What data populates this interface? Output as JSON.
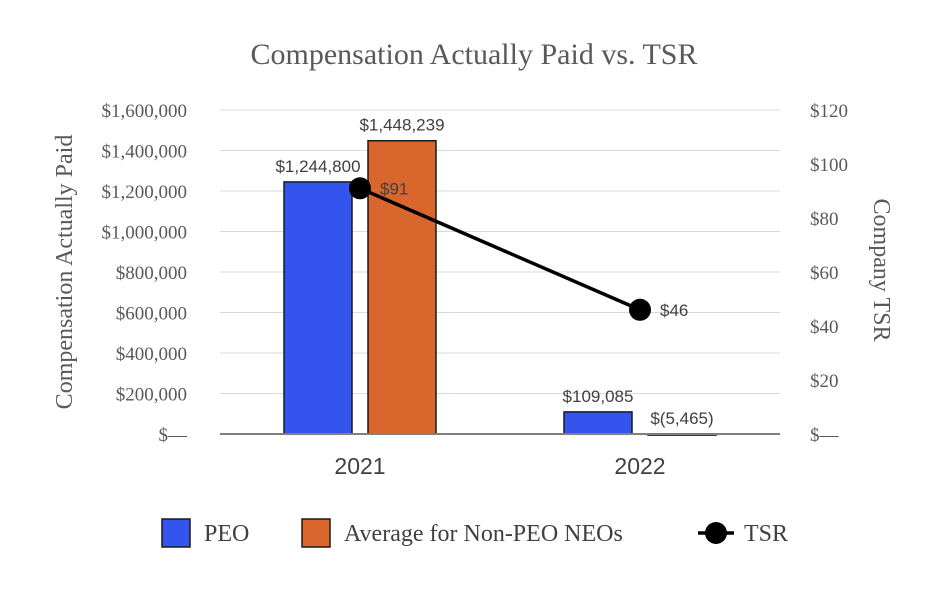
{
  "chart_data": {
    "type": "bar",
    "title": "Compensation Actually Paid vs. TSR",
    "ylabel": "Compensation Actually Paid",
    "y2label": "Company TSR",
    "categories": [
      "2021",
      "2022"
    ],
    "ylim": [
      0,
      1600000
    ],
    "y2lim": [
      0,
      120
    ],
    "yticks": [
      "$—",
      "$200,000",
      "$400,000",
      "$600,000",
      "$800,000",
      "$1,000,000",
      "$1,200,000",
      "$1,400,000",
      "$1,600,000"
    ],
    "y2ticks": [
      "$—",
      "$20",
      "$40",
      "$60",
      "$80",
      "$100",
      "$120"
    ],
    "series": [
      {
        "name": "PEO",
        "kind": "bar",
        "color": "#3355ee",
        "values": [
          1244800,
          109085
        ],
        "labels": [
          "$1,244,800",
          "$109,085"
        ]
      },
      {
        "name": "Average for Non-PEO NEOs",
        "kind": "bar",
        "color": "#d9662d",
        "values": [
          1448239,
          -5465
        ],
        "labels": [
          "$1,448,239",
          "$(5,465)"
        ]
      },
      {
        "name": "TSR",
        "kind": "line",
        "axis": "right",
        "color": "#000000",
        "values": [
          91,
          46
        ],
        "labels": [
          "$91",
          "$46"
        ]
      }
    ],
    "legend": "bottom",
    "grid": true
  }
}
